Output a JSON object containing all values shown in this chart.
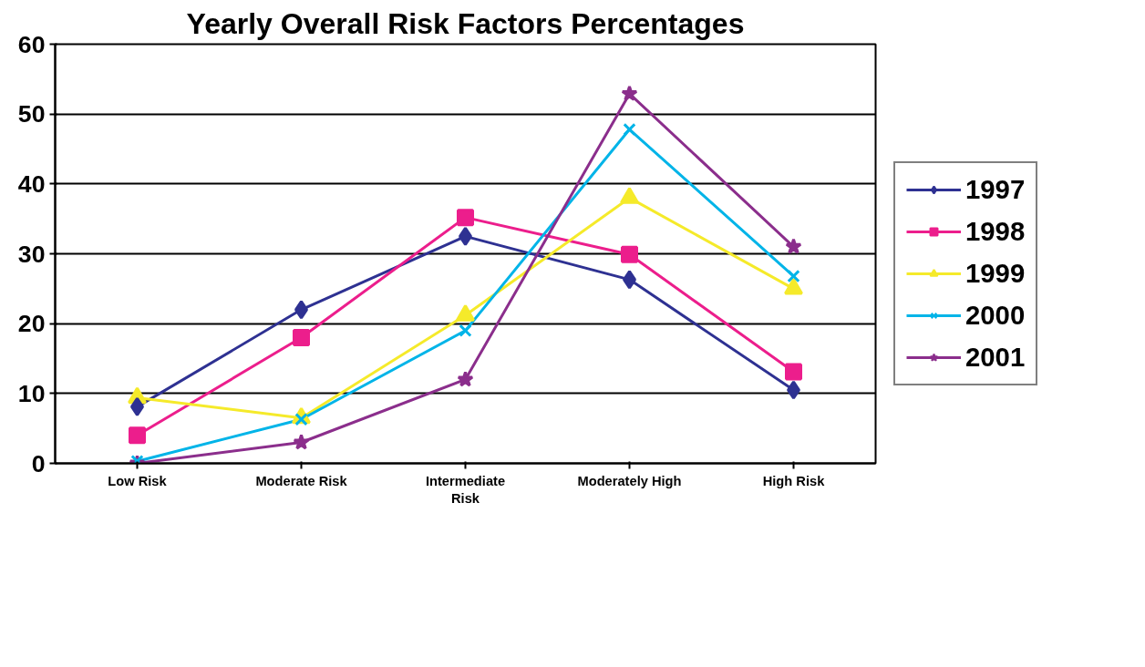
{
  "chart_data": {
    "type": "line",
    "title": "Yearly Overall Risk Factors Percentages",
    "categories": [
      "Low Risk",
      "Moderate Risk",
      "Intermediate\nRisk",
      "Moderately High",
      "High Risk"
    ],
    "series": [
      {
        "name": "1997",
        "color": "#2e3192",
        "marker": "diamond",
        "values": [
          8.1,
          22,
          32.5,
          26.3,
          10.5
        ]
      },
      {
        "name": "1998",
        "color": "#ec1e8c",
        "marker": "square",
        "values": [
          4,
          18,
          35.2,
          29.9,
          13.1
        ]
      },
      {
        "name": "1999",
        "color": "#f5ea2a",
        "marker": "triangle",
        "values": [
          9.4,
          6.5,
          21.2,
          38,
          25
        ]
      },
      {
        "name": "2000",
        "color": "#00b4e8",
        "marker": "cross",
        "values": [
          0.3,
          6.3,
          19,
          47.8,
          26.8
        ]
      },
      {
        "name": "2001",
        "color": "#8b2e8c",
        "marker": "star",
        "values": [
          0,
          3,
          12,
          52.9,
          31
        ]
      }
    ],
    "ylim": [
      0,
      60
    ],
    "yticks": [
      0,
      10,
      20,
      30,
      40,
      50,
      60
    ],
    "grid": "y",
    "legend": "right"
  }
}
